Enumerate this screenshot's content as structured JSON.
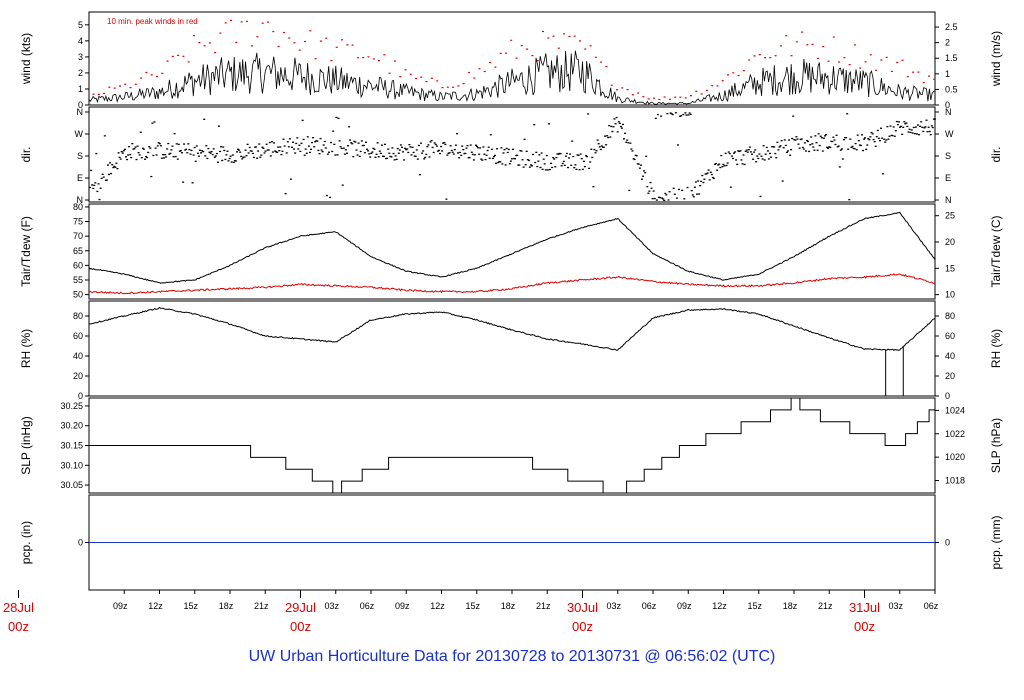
{
  "footer_title": "UW Urban Horticulture Data for 20130728  to  20130731 @ 06:56:02  (UTC)",
  "colors": {
    "axis": "#000000",
    "peak": "#e00000",
    "dew": "#e00000",
    "pcp": "#1a2fd0",
    "title": "#1a2fd0",
    "date": "#e00000"
  },
  "chart_data": [
    {
      "type": "line",
      "panel": "wind",
      "left_axis_label": "wind (kts)",
      "right_axis_label": "wind (m/s)",
      "annotation": "10 min. peak winds in red",
      "left_ticks": [
        0,
        1,
        2,
        3,
        4,
        5
      ],
      "right_ticks": [
        "0",
        "0.5",
        "1",
        "1.5",
        "2",
        "2.5"
      ],
      "ylim": [
        0,
        5.8
      ],
      "series": [
        {
          "name": "wind (kts)",
          "color": "#000000",
          "x": [
            "28Jul 06z",
            "28Jul 09z",
            "28Jul 12z",
            "28Jul 15z",
            "28Jul 18z",
            "28Jul 21z",
            "29Jul 00z",
            "29Jul 03z",
            "29Jul 06z",
            "29Jul 09z",
            "29Jul 12z",
            "29Jul 15z",
            "29Jul 18z",
            "29Jul 21z",
            "30Jul 00z",
            "30Jul 03z",
            "30Jul 06z",
            "30Jul 09z",
            "30Jul 12z",
            "30Jul 15z",
            "30Jul 18z",
            "30Jul 21z",
            "31Jul 00z",
            "31Jul 03z",
            "31Jul 06z"
          ],
          "y": [
            0.3,
            0.5,
            0.8,
            1.5,
            1.9,
            2.0,
            1.8,
            1.5,
            1.2,
            0.8,
            0.5,
            0.7,
            1.4,
            2.0,
            2.1,
            0.4,
            0.1,
            0.1,
            0.6,
            1.4,
            1.8,
            1.7,
            1.4,
            0.8,
            0.6
          ]
        },
        {
          "name": "10 min. peak winds",
          "color": "#e00000",
          "x": [
            "28Jul 06z",
            "28Jul 09z",
            "28Jul 12z",
            "28Jul 15z",
            "28Jul 18z",
            "28Jul 21z",
            "29Jul 00z",
            "29Jul 03z",
            "29Jul 06z",
            "29Jul 09z",
            "29Jul 12z",
            "29Jul 15z",
            "29Jul 18z",
            "29Jul 21z",
            "30Jul 00z",
            "30Jul 03z",
            "30Jul 06z",
            "30Jul 09z",
            "30Jul 12z",
            "30Jul 15z",
            "30Jul 18z",
            "30Jul 21z",
            "31Jul 00z",
            "31Jul 03z",
            "31Jul 06z"
          ],
          "y": [
            0.6,
            1.2,
            2.0,
            3.6,
            4.4,
            5.0,
            4.0,
            3.4,
            3.2,
            1.8,
            1.2,
            2.0,
            3.4,
            3.8,
            3.6,
            1.2,
            0.4,
            0.6,
            1.6,
            3.2,
            3.8,
            3.6,
            3.0,
            2.4,
            1.6
          ]
        }
      ]
    },
    {
      "type": "scatter",
      "panel": "direction",
      "left_axis_label": "dir.",
      "right_axis_label": "dir.",
      "left_ticks": [
        "N",
        "E",
        "S",
        "W",
        "N"
      ],
      "right_ticks": [
        "N",
        "E",
        "S",
        "W",
        "N"
      ],
      "ylim": [
        0,
        360
      ],
      "series": [
        {
          "name": "dir.",
          "x": [
            "28Jul 06z",
            "28Jul 09z",
            "28Jul 12z",
            "28Jul 15z",
            "28Jul 18z",
            "28Jul 21z",
            "29Jul 00z",
            "29Jul 03z",
            "29Jul 06z",
            "29Jul 09z",
            "29Jul 12z",
            "29Jul 15z",
            "29Jul 18z",
            "29Jul 21z",
            "30Jul 00z",
            "30Jul 03z",
            "30Jul 06z",
            "30Jul 09z",
            "30Jul 12z",
            "30Jul 15z",
            "30Jul 18z",
            "30Jul 21z",
            "31Jul 00z",
            "31Jul 03z",
            "31Jul 06z"
          ],
          "y": [
            30,
            200,
            205,
            195,
            190,
            210,
            230,
            220,
            205,
            200,
            210,
            200,
            175,
            160,
            160,
            320,
            10,
            20,
            170,
            190,
            225,
            240,
            235,
            300,
            300
          ]
        }
      ]
    },
    {
      "type": "line",
      "panel": "temperature",
      "left_axis_label": "Tair/Tdew (F)",
      "right_axis_label": "Tair/Tdew (C)",
      "left_ticks": [
        50,
        55,
        60,
        65,
        70,
        75,
        80
      ],
      "right_ticks": [
        10,
        15,
        20,
        25
      ],
      "ylim": [
        48.5,
        81
      ],
      "series": [
        {
          "name": "Tair",
          "color": "#000000",
          "x": [
            "28Jul 06z",
            "28Jul 09z",
            "28Jul 12z",
            "28Jul 15z",
            "28Jul 18z",
            "28Jul 21z",
            "29Jul 00z",
            "29Jul 03z",
            "29Jul 06z",
            "29Jul 09z",
            "29Jul 12z",
            "29Jul 15z",
            "29Jul 18z",
            "29Jul 21z",
            "30Jul 00z",
            "30Jul 03z",
            "30Jul 06z",
            "30Jul 09z",
            "30Jul 12z",
            "30Jul 15z",
            "30Jul 18z",
            "30Jul 21z",
            "31Jul 00z",
            "31Jul 03z",
            "31Jul 06z"
          ],
          "y": [
            59,
            57,
            54,
            55,
            60,
            66,
            70,
            71.5,
            63,
            58,
            56,
            59,
            64,
            69,
            73,
            76,
            64,
            58,
            55,
            57,
            63,
            70,
            76,
            78,
            62
          ]
        },
        {
          "name": "Tdew",
          "color": "#e00000",
          "x": [
            "28Jul 06z",
            "28Jul 09z",
            "28Jul 12z",
            "28Jul 15z",
            "28Jul 18z",
            "28Jul 21z",
            "29Jul 00z",
            "29Jul 03z",
            "29Jul 06z",
            "29Jul 09z",
            "29Jul 12z",
            "29Jul 15z",
            "29Jul 18z",
            "29Jul 21z",
            "30Jul 00z",
            "30Jul 03z",
            "30Jul 06z",
            "30Jul 09z",
            "30Jul 12z",
            "30Jul 15z",
            "30Jul 18z",
            "30Jul 21z",
            "31Jul 00z",
            "31Jul 03z",
            "31Jul 06z"
          ],
          "y": [
            51,
            50.5,
            51,
            51.5,
            52,
            52.5,
            53.5,
            53,
            52.5,
            51.5,
            51,
            51,
            52,
            54,
            55,
            56,
            54.5,
            53.5,
            53,
            53,
            54,
            55.5,
            56,
            57,
            54
          ]
        }
      ]
    },
    {
      "type": "line",
      "panel": "humidity",
      "left_axis_label": "RH (%)",
      "right_axis_label": "RH (%)",
      "left_ticks": [
        0,
        20,
        40,
        60,
        80
      ],
      "right_ticks": [
        0,
        20,
        40,
        60,
        80
      ],
      "ylim": [
        0,
        95
      ],
      "series": [
        {
          "name": "RH",
          "color": "#000000",
          "x": [
            "28Jul 06z",
            "28Jul 09z",
            "28Jul 12z",
            "28Jul 15z",
            "28Jul 18z",
            "28Jul 21z",
            "29Jul 00z",
            "29Jul 03z",
            "29Jul 06z",
            "29Jul 09z",
            "29Jul 12z",
            "29Jul 15z",
            "29Jul 18z",
            "29Jul 21z",
            "30Jul 00z",
            "30Jul 03z",
            "30Jul 06z",
            "30Jul 09z",
            "30Jul 12z",
            "30Jul 15z",
            "30Jul 18z",
            "30Jul 21z",
            "31Jul 00z",
            "31Jul 03z",
            "31Jul 06z"
          ],
          "y": [
            72,
            80,
            88,
            82,
            72,
            60,
            57,
            54,
            76,
            82,
            84,
            76,
            66,
            57,
            52,
            46,
            78,
            86,
            87,
            82,
            70,
            58,
            47,
            46,
            78
          ]
        }
      ]
    },
    {
      "type": "line",
      "panel": "pressure",
      "left_axis_label": "SLP (inHg)",
      "right_axis_label": "SLP (hPa)",
      "left_ticks": [
        "30.05",
        "30.10",
        "30.15",
        "30.20",
        "30.25"
      ],
      "right_ticks": [
        1018,
        1020,
        1022,
        1024
      ],
      "ylim": [
        30.03,
        30.27
      ],
      "series": [
        {
          "name": "SLP",
          "color": "#000000",
          "x": [
            "28Jul 06z",
            "28Jul 09z",
            "28Jul 12z",
            "28Jul 15z",
            "28Jul 18z",
            "28Jul 21z",
            "29Jul 00z",
            "29Jul 03z",
            "29Jul 06z",
            "29Jul 09z",
            "29Jul 12z",
            "29Jul 15z",
            "29Jul 18z",
            "29Jul 21z",
            "30Jul 00z",
            "30Jul 03z",
            "30Jul 06z",
            "30Jul 09z",
            "30Jul 12z",
            "30Jul 15z",
            "30Jul 18z",
            "30Jul 21z",
            "31Jul 00z",
            "31Jul 03z",
            "31Jul 06z"
          ],
          "y": [
            30.15,
            30.15,
            30.15,
            30.15,
            30.15,
            30.12,
            30.09,
            30.04,
            30.09,
            30.12,
            30.12,
            30.12,
            30.12,
            30.09,
            30.06,
            30.03,
            30.09,
            30.15,
            30.18,
            30.21,
            30.26,
            30.21,
            30.18,
            30.15,
            30.24
          ]
        }
      ]
    },
    {
      "type": "line",
      "panel": "precipitation",
      "left_axis_label": "pcp. (in)",
      "right_axis_label": "pcp. (mm)",
      "left_ticks": [
        0
      ],
      "right_ticks": [
        0
      ],
      "series": [
        {
          "name": "pcp.",
          "color": "#1a2fd0",
          "x": [
            "28Jul 06z",
            "31Jul 06z"
          ],
          "y": [
            0,
            0
          ]
        }
      ]
    }
  ],
  "x_axis": {
    "hour_ticks": [
      "09z",
      "12z",
      "15z",
      "18z",
      "21z",
      "03z",
      "06z",
      "09z",
      "12z",
      "15z",
      "18z",
      "21z",
      "03z",
      "06z",
      "09z",
      "12z",
      "15z",
      "18z",
      "21z",
      "03z",
      "06z"
    ],
    "day_labels": [
      {
        "date": "28Jul",
        "time": "00z"
      },
      {
        "date": "29Jul",
        "time": "00z"
      },
      {
        "date": "30Jul",
        "time": "00z"
      },
      {
        "date": "31Jul",
        "time": "00z"
      }
    ]
  }
}
